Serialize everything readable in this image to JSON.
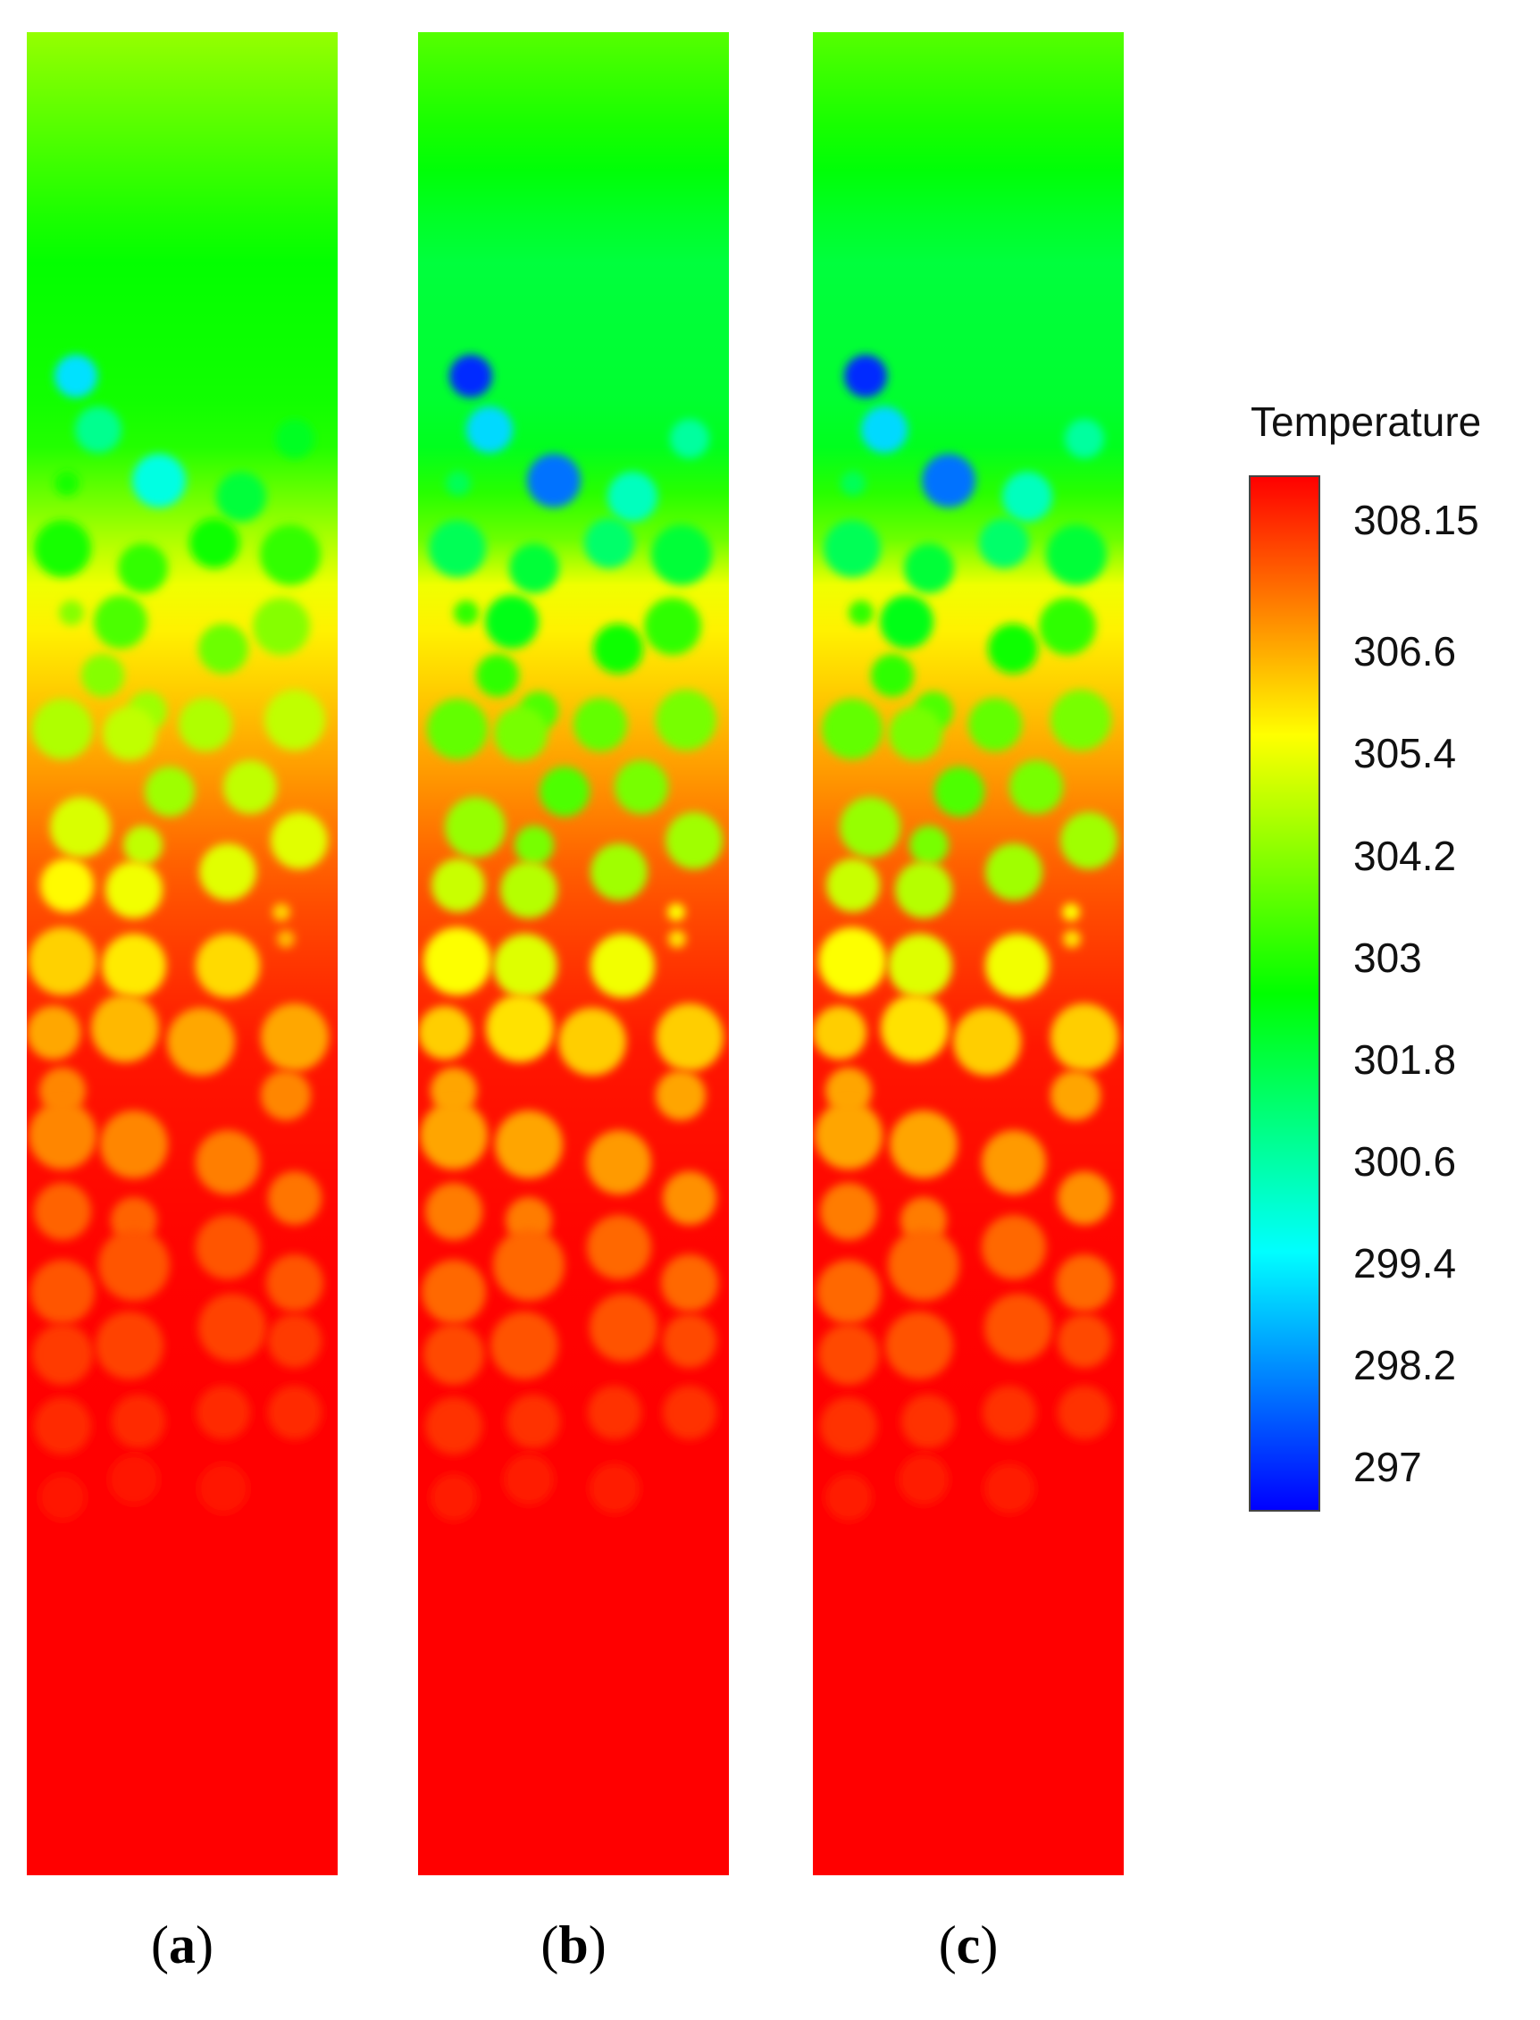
{
  "chart_data": {
    "type": "heatmap",
    "title": "",
    "colorbar": {
      "title": "Temperature",
      "ticks": [
        "308.15",
        "306.6",
        "305.4",
        "304.2",
        "303",
        "301.8",
        "300.6",
        "299.4",
        "298.2",
        "297"
      ],
      "tick_values": [
        308.15,
        306.6,
        305.4,
        304.2,
        303,
        301.8,
        300.6,
        299.4,
        298.2,
        297
      ],
      "range": [
        297,
        308.15
      ],
      "colormap": [
        "#0000ff",
        "#00ffff",
        "#00ff00",
        "#ffff00",
        "#ff0000"
      ]
    },
    "panels": [
      {
        "label": "(a)",
        "letter": "a",
        "variant": 0
      },
      {
        "label": "(b)",
        "letter": "b",
        "variant": 1
      },
      {
        "label": "(c)",
        "letter": "c",
        "variant": 1
      }
    ],
    "temperature_profile": {
      "depth_fraction": [
        0.0,
        0.12,
        0.22,
        0.3,
        0.38,
        0.46,
        0.55,
        0.65,
        0.75,
        1.0
      ],
      "background_temperature": [
        304.2,
        302.6,
        302.8,
        305.2,
        306.2,
        307.2,
        307.9,
        308.1,
        308.15,
        308.15
      ]
    },
    "bubble_temperatures_min": {
      "a": 299.0,
      "b": 297.5,
      "c": 297.5
    }
  }
}
